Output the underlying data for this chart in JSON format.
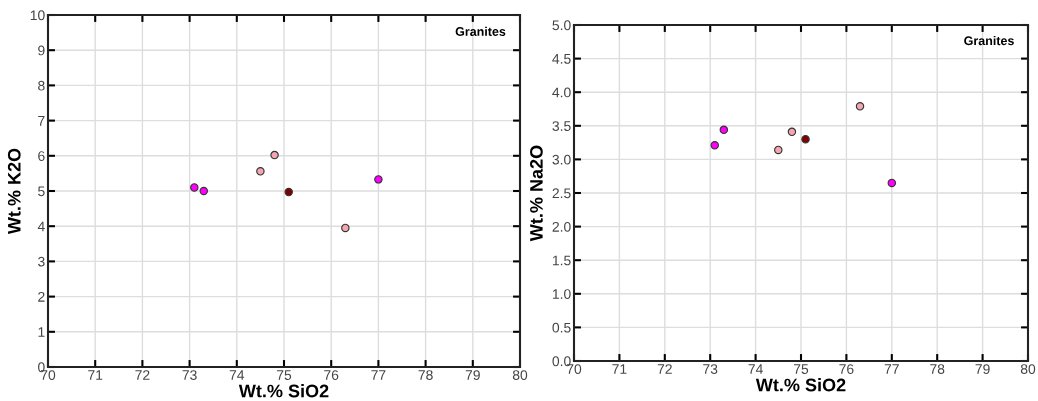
{
  "chart_data": [
    {
      "type": "scatter",
      "xlabel": "Wt.% SiO2",
      "ylabel": "Wt.% K2O",
      "annotations": [
        "Granites"
      ],
      "xlim": [
        70,
        80
      ],
      "ylim": [
        0,
        10
      ],
      "xticks": [
        70,
        71,
        72,
        73,
        74,
        75,
        76,
        77,
        78,
        79,
        80
      ],
      "yticks": [
        0,
        1,
        2,
        3,
        4,
        5,
        6,
        7,
        8,
        9,
        10
      ],
      "grid": true,
      "marker": "circle",
      "series": [
        {
          "color": "#ff00ff",
          "x": [
            73.1,
            73.3,
            77.0
          ],
          "values": [
            5.1,
            5.0,
            5.33
          ]
        },
        {
          "color": "#f4a6b0",
          "x": [
            74.5,
            74.8,
            76.3
          ],
          "values": [
            5.56,
            6.02,
            3.95
          ]
        },
        {
          "color": "#800000",
          "x": [
            75.1
          ],
          "values": [
            4.97
          ]
        }
      ]
    },
    {
      "type": "scatter",
      "xlabel": "Wt.% SiO2",
      "ylabel": "Wt.% Na2O",
      "annotations": [
        "Granites"
      ],
      "xlim": [
        70,
        80
      ],
      "ylim": [
        0,
        5
      ],
      "xticks": [
        70,
        71,
        72,
        73,
        74,
        75,
        76,
        77,
        78,
        79,
        80
      ],
      "yticks": [
        {
          "value": 0,
          "label": "0.0"
        },
        0.5,
        {
          "value": 1,
          "label": "1.0"
        },
        1.5,
        {
          "value": 2,
          "label": "2.0"
        },
        2.5,
        {
          "value": 3,
          "label": "3.0"
        },
        3.5,
        {
          "value": 4,
          "label": "4.0"
        },
        4.5,
        {
          "value": 5,
          "label": "5.0"
        }
      ],
      "grid": true,
      "marker": "circle",
      "series": [
        {
          "color": "#ff00ff",
          "x": [
            73.1,
            73.3,
            77.0
          ],
          "values": [
            3.21,
            3.44,
            2.65
          ]
        },
        {
          "color": "#f4a6b0",
          "x": [
            74.5,
            74.8,
            76.3
          ],
          "values": [
            3.14,
            3.41,
            3.79
          ]
        },
        {
          "color": "#800000",
          "x": [
            75.1
          ],
          "values": [
            3.3
          ]
        }
      ]
    }
  ]
}
